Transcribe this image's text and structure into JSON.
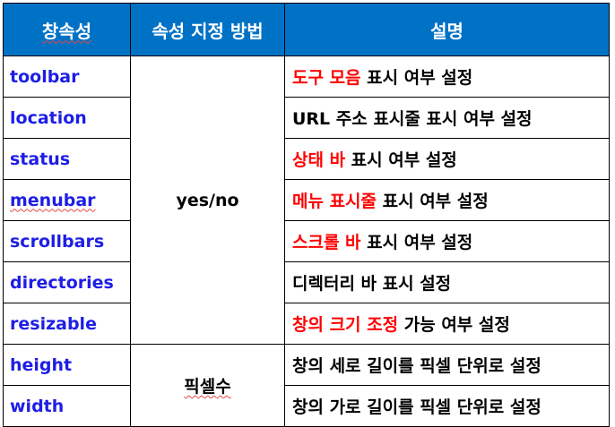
{
  "headers": {
    "property": "창속성",
    "method": "속성 지정 방법",
    "description": "설명"
  },
  "methods": {
    "yes_no": "yes/no",
    "pixels": "픽셀수"
  },
  "rows": [
    {
      "property": "toolbar",
      "highlight": "도구 모음",
      "rest": " 표시 여부 설정"
    },
    {
      "property": "location",
      "highlight": "",
      "rest": "URL 주소 표시줄 표시 여부 설정"
    },
    {
      "property": "status",
      "highlight": "상태 바",
      "rest": " 표시 여부 설정"
    },
    {
      "property": "menubar",
      "highlight": "메뉴 표시줄",
      "rest": " 표시 여부 설정"
    },
    {
      "property": "scrollbars",
      "highlight": "스크롤 바",
      "rest": " 표시 여부 설정"
    },
    {
      "property": "directories",
      "highlight": "",
      "rest": "디렉터리 바 표시 설정"
    },
    {
      "property": "resizable",
      "highlight": "창의 크기 조정",
      "rest": " 가능 여부 설정"
    },
    {
      "property": "height",
      "highlight": "",
      "rest": "창의 세로 길이를 픽셀 단위로 설정"
    },
    {
      "property": "width",
      "highlight": "",
      "rest": "창의 가로 길이를 픽셀 단위로 설정"
    }
  ],
  "colors": {
    "header_bg": "#0072c6",
    "property_text": "#1e1ee6",
    "highlight_text": "#ff0000"
  }
}
